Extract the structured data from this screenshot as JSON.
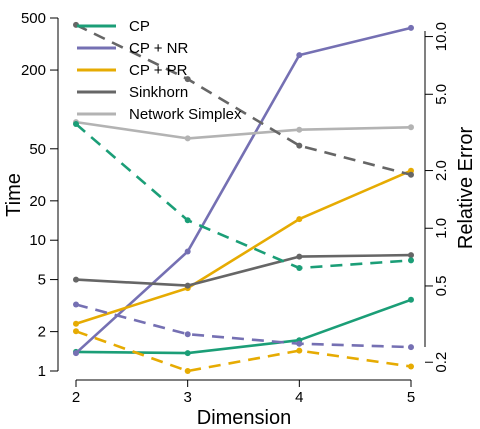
{
  "chart_data": {
    "type": "line",
    "title": "",
    "xlabel": "Dimension",
    "ylabel_left": "Time",
    "ylabel_right": "Relative Error",
    "x": [
      2,
      3,
      4,
      5
    ],
    "x_ticks": [
      "2",
      "3",
      "4",
      "5"
    ],
    "left_axis": {
      "scale": "log",
      "ylim": [
        1,
        500
      ],
      "ticks": [
        "1",
        "2",
        "5",
        "10",
        "20",
        "50",
        "200",
        "500"
      ],
      "tick_values": [
        1,
        2,
        5,
        10,
        20,
        50,
        200,
        500
      ]
    },
    "right_axis": {
      "scale": "log",
      "ylim": [
        0.18,
        12.5
      ],
      "ticks": [
        "0.2",
        "0.5",
        "1.0",
        "2.0",
        "5.0",
        "10.0"
      ],
      "tick_values": [
        0.2,
        0.5,
        1.0,
        2.0,
        5.0,
        10.0
      ]
    },
    "grid": false,
    "legend_position": "top-left",
    "legend": [
      {
        "name": "CP",
        "color": "#1b9e77"
      },
      {
        "name": "CP + NR",
        "color": "#7570b3"
      },
      {
        "name": "CP + PR",
        "color": "#e6ab02"
      },
      {
        "name": "Sinkhorn",
        "color": "#666666"
      },
      {
        "name": "Network Simplex",
        "color": "#b3b3b3"
      }
    ],
    "series": [
      {
        "name": "CP",
        "metric": "Time",
        "axis": "left",
        "dash": "solid",
        "color": "#1b9e77",
        "values": [
          1.4,
          1.37,
          1.72,
          3.5
        ]
      },
      {
        "name": "CP + NR",
        "metric": "Time",
        "axis": "left",
        "dash": "solid",
        "color": "#7570b3",
        "values": [
          1.37,
          8.2,
          260,
          420
        ]
      },
      {
        "name": "CP + PR",
        "metric": "Time",
        "axis": "left",
        "dash": "solid",
        "color": "#e6ab02",
        "values": [
          2.3,
          4.3,
          14.5,
          34
        ]
      },
      {
        "name": "Sinkhorn",
        "metric": "Time",
        "axis": "left",
        "dash": "solid",
        "color": "#666666",
        "values": [
          5.0,
          4.5,
          7.5,
          7.7
        ]
      },
      {
        "name": "Network Simplex",
        "metric": "Time",
        "axis": "left",
        "dash": "solid",
        "color": "#b3b3b3",
        "values": [
          80,
          60,
          70,
          73
        ]
      },
      {
        "name": "CP",
        "metric": "Relative Error",
        "axis": "right",
        "dash": "dashed",
        "color": "#1b9e77",
        "values": [
          3.5,
          1.1,
          0.62,
          0.68
        ]
      },
      {
        "name": "CP + NR",
        "metric": "Relative Error",
        "axis": "right",
        "dash": "dashed",
        "color": "#7570b3",
        "values": [
          0.4,
          0.28,
          0.25,
          0.24
        ]
      },
      {
        "name": "CP + PR",
        "metric": "Relative Error",
        "axis": "right",
        "dash": "dashed",
        "color": "#e6ab02",
        "values": [
          0.29,
          0.18,
          0.23,
          0.19
        ]
      },
      {
        "name": "Sinkhorn",
        "metric": "Relative Error",
        "axis": "right",
        "dash": "dashed",
        "color": "#666666",
        "values": [
          11.5,
          6.0,
          2.7,
          1.9
        ]
      }
    ]
  }
}
